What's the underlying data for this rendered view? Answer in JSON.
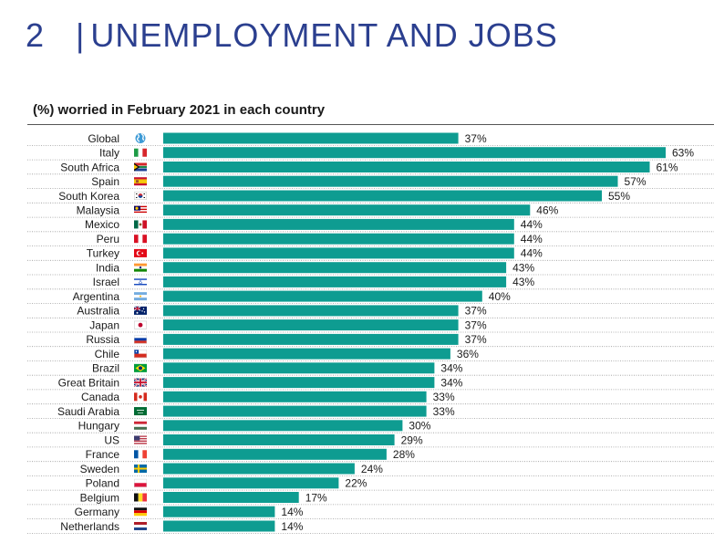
{
  "header": {
    "section_number": "2",
    "separator": "|",
    "section_title": "UNEMPLOYMENT AND JOBS"
  },
  "chart_data": {
    "type": "bar",
    "orientation": "horizontal",
    "title": "(%) worried in February 2021 in each country",
    "value_suffix": "%",
    "bar_color": "#0e9c91",
    "xlim": [
      0,
      63
    ],
    "grid": false,
    "categories": [
      "Global",
      "Italy",
      "South Africa",
      "Spain",
      "South Korea",
      "Malaysia",
      "Mexico",
      "Peru",
      "Turkey",
      "India",
      "Israel",
      "Argentina",
      "Australia",
      "Japan",
      "Russia",
      "Chile",
      "Brazil",
      "Great Britain",
      "Canada",
      "Saudi Arabia",
      "Hungary",
      "US",
      "France",
      "Sweden",
      "Poland",
      "Belgium",
      "Germany",
      "Netherlands"
    ],
    "values": [
      37,
      63,
      61,
      57,
      55,
      46,
      44,
      44,
      44,
      43,
      43,
      40,
      37,
      37,
      37,
      36,
      34,
      34,
      33,
      33,
      30,
      29,
      28,
      24,
      22,
      17,
      14,
      14
    ],
    "data_labels": [
      "37%",
      "63%",
      "61%",
      "57%",
      "55%",
      "46%",
      "44%",
      "44%",
      "44%",
      "43%",
      "43%",
      "40%",
      "37%",
      "37%",
      "37%",
      "36%",
      "34%",
      "34%",
      "33%",
      "33%",
      "30%",
      "29%",
      "28%",
      "24%",
      "22%",
      "17%",
      "14%",
      "14%"
    ],
    "icons": [
      "globe-icon",
      "flag-italy-icon",
      "flag-south-africa-icon",
      "flag-spain-icon",
      "flag-south-korea-icon",
      "flag-malaysia-icon",
      "flag-mexico-icon",
      "flag-peru-icon",
      "flag-turkey-icon",
      "flag-india-icon",
      "flag-israel-icon",
      "flag-argentina-icon",
      "flag-australia-icon",
      "flag-japan-icon",
      "flag-russia-icon",
      "flag-chile-icon",
      "flag-brazil-icon",
      "flag-great-britain-icon",
      "flag-canada-icon",
      "flag-saudi-arabia-icon",
      "flag-hungary-icon",
      "flag-us-icon",
      "flag-france-icon",
      "flag-sweden-icon",
      "flag-poland-icon",
      "flag-belgium-icon",
      "flag-germany-icon",
      "flag-netherlands-icon"
    ]
  }
}
